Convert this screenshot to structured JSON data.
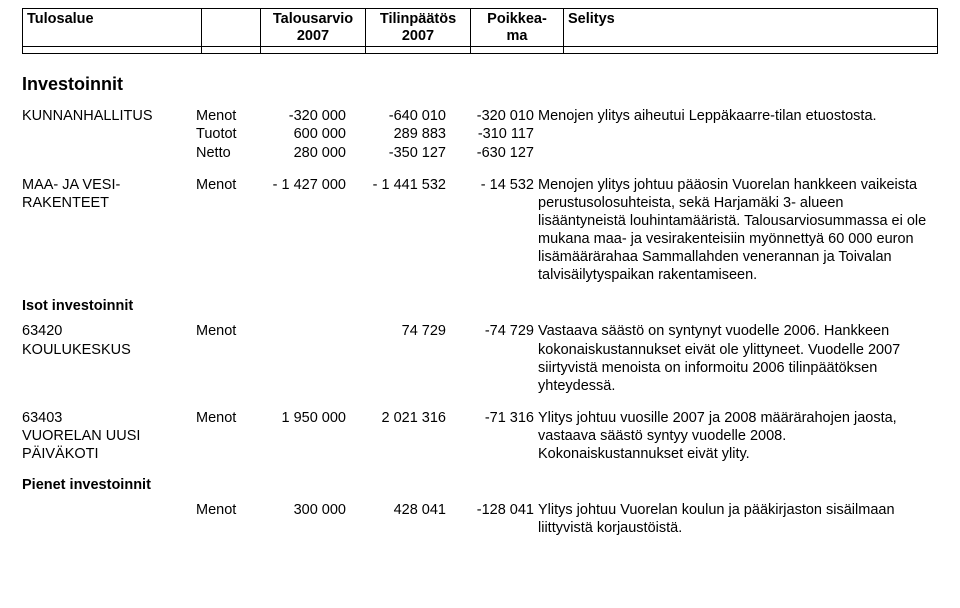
{
  "header": {
    "col1": "Tulosalue",
    "col2": "",
    "col3_l1": "Talousarvio",
    "col3_l2": "2007",
    "col4_l1": "Tilinpäätös",
    "col4_l2": "2007",
    "col5_l1": "Poikkea-",
    "col5_l2": "ma",
    "col6": "Selitys"
  },
  "sections": {
    "invest_title": "Investoinnit",
    "isot_title": "Isot investoinnit",
    "pienet_title": "Pienet investoinnit"
  },
  "rows": {
    "kunnanhallitus": {
      "name": "KUNNANHALLITUS",
      "kinds": [
        "Menot",
        "Tuotot",
        "Netto"
      ],
      "budget": [
        "-320 000",
        "600 000",
        "280 000"
      ],
      "actual": [
        "-640 010",
        "289 883",
        "-350 127"
      ],
      "diff": [
        "-320 010",
        "-310 117",
        "-630 127"
      ],
      "text": "Menojen ylitys aiheutui Leppäkaarre-tilan etuostosta."
    },
    "maajavesi": {
      "name_l1": "MAA- JA VESI-",
      "name_l2": "RAKENTEET",
      "kind": "Menot",
      "budget": "- 1 427 000",
      "actual": "- 1 441 532",
      "diff": "- 14 532",
      "text": "Menojen ylitys johtuu pääosin Vuorelan hankkeen vaikeista perustusolosuhteista, sekä Harjamäki 3- alueen lisääntyneistä louhintamääristä. Talousarviosummassa ei ole mukana maa- ja vesirakenteisiin myönnettyä 60 000 euron lisämäärärahaa Sammallahden venerannan ja Toivalan talvisäilytyspaikan rakentamiseen."
    },
    "koulukeskus": {
      "name_l1": "63420",
      "name_l2": "KOULUKESKUS",
      "kind": "Menot",
      "budget": "",
      "actual": "74 729",
      "diff": "-74 729",
      "text": "Vastaava säästö on syntynyt vuodelle 2006. Hankkeen kokonaiskustannukset eivät ole ylittyneet. Vuodelle 2007 siirtyvistä menoista on informoitu 2006 tilinpäätöksen yhteydessä."
    },
    "paivakoti": {
      "name_l1": "63403",
      "name_l2": "VUORELAN UUSI",
      "name_l3": "PÄIVÄKOTI",
      "kind": "Menot",
      "budget": "1 950 000",
      "actual": "2 021 316",
      "diff": "-71 316",
      "text": "Ylitys johtuu vuosille 2007 ja 2008 määrärahojen jaosta, vastaava säästö syntyy vuodelle 2008. Kokonaiskustannukset eivät ylity."
    },
    "pienet": {
      "kind": "Menot",
      "budget": "300 000",
      "actual": "428 041",
      "diff": "-128 041",
      "text": "Ylitys johtuu Vuorelan koulun ja pääkirjaston sisäilmaan liittyvistä korjaustöistä."
    }
  }
}
